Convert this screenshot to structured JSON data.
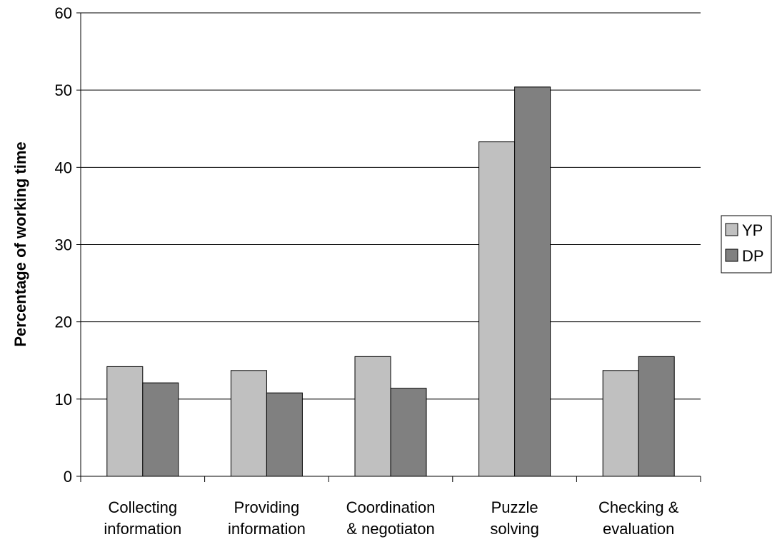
{
  "chart_data": {
    "type": "bar",
    "title": "",
    "xlabel": "",
    "ylabel": "Percentage of working time",
    "ylim": [
      0,
      60
    ],
    "yticks": [
      0,
      10,
      20,
      30,
      40,
      50,
      60
    ],
    "grid": true,
    "legend_position": "right",
    "categories": [
      [
        "Collecting",
        "information"
      ],
      [
        "Providing",
        "information"
      ],
      [
        "Coordination",
        "& negotiaton"
      ],
      [
        "Puzzle",
        "solving"
      ],
      [
        "Checking &",
        "evaluation"
      ]
    ],
    "series": [
      {
        "name": "YP",
        "color": "#c0c0c0",
        "values": [
          14.2,
          13.7,
          15.5,
          43.3,
          13.7
        ]
      },
      {
        "name": "DP",
        "color": "#808080",
        "values": [
          12.1,
          10.8,
          11.4,
          50.4,
          15.5
        ]
      }
    ]
  }
}
